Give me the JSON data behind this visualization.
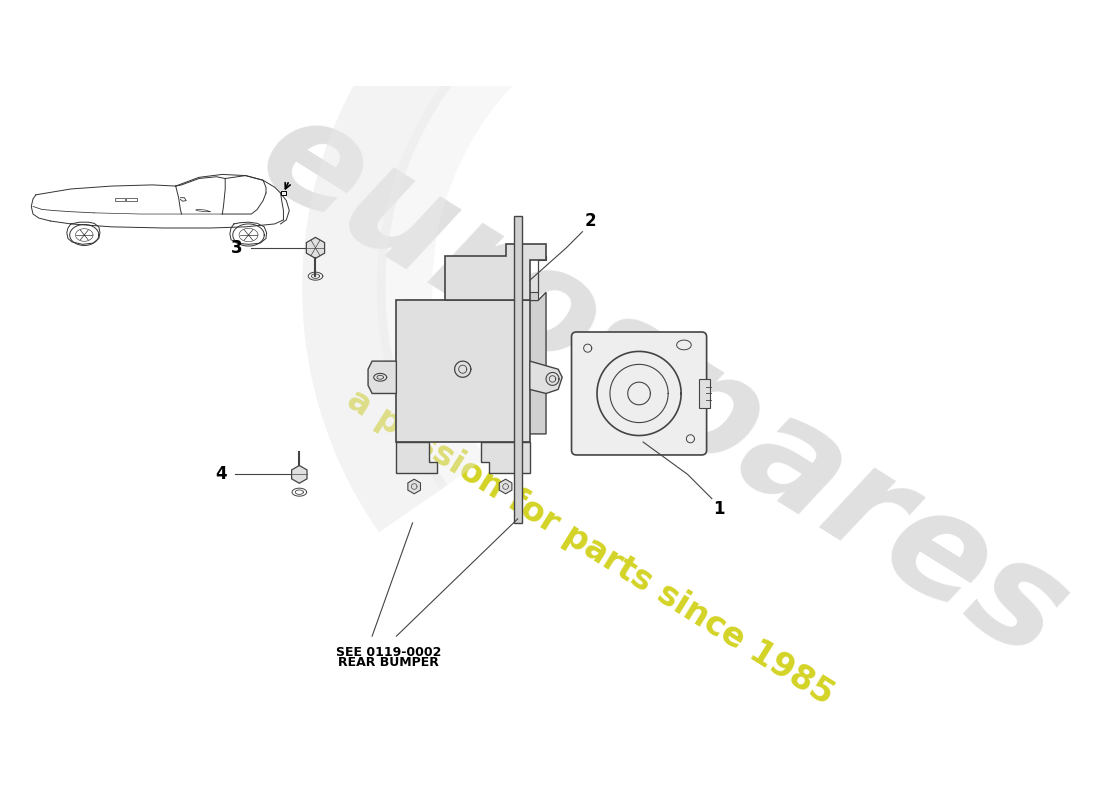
{
  "background_color": "#ffffff",
  "watermark_text1": "eurospares",
  "watermark_color1": "#bbbbbb",
  "watermark_text2": "a passion for parts since 1985",
  "watermark_color2": "#cccc00",
  "ref_text1": "SEE 0119-0002",
  "ref_text2": "REAR BUMPER",
  "line_color": "#444444",
  "fill_light": "#eeeeee",
  "fill_mid": "#e0e0e0",
  "fill_dark": "#d0d0d0",
  "label_color": "#000000",
  "car_color": "#333333",
  "figsize": [
    11.0,
    8.0
  ],
  "dpi": 100
}
